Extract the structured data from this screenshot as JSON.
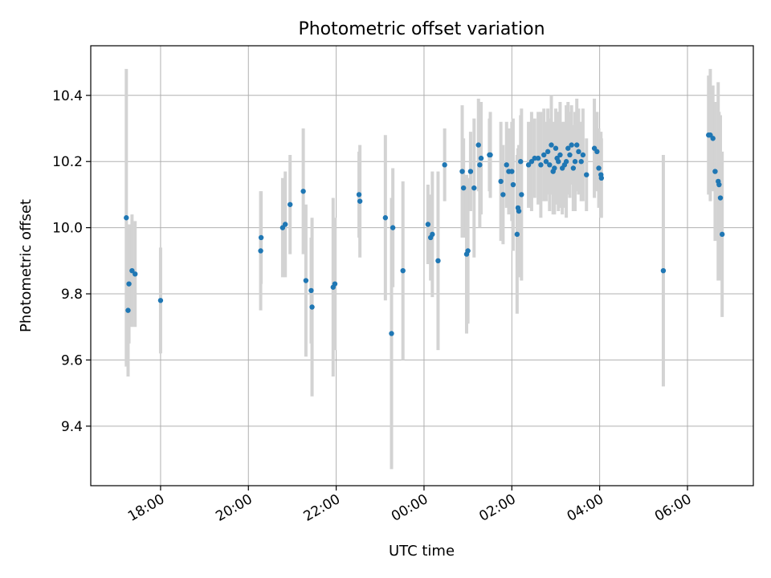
{
  "chart_data": {
    "type": "scatter",
    "title": "Photometric offset variation",
    "xlabel": "UTC time",
    "ylabel": "Photometric offset",
    "x_unit": "hours relative to 00:00 UTC",
    "xlim": [
      -7.59,
      7.5
    ],
    "ylim": [
      9.22,
      10.55
    ],
    "xticks": [
      {
        "value": -6,
        "label": "18:00"
      },
      {
        "value": -4,
        "label": "20:00"
      },
      {
        "value": -2,
        "label": "22:00"
      },
      {
        "value": 0,
        "label": "00:00"
      },
      {
        "value": 2,
        "label": "02:00"
      },
      {
        "value": 4,
        "label": "04:00"
      },
      {
        "value": 6,
        "label": "06:00"
      }
    ],
    "yticks": [
      {
        "value": 9.4,
        "label": "9.4"
      },
      {
        "value": 9.6,
        "label": "9.6"
      },
      {
        "value": 9.8,
        "label": "9.8"
      },
      {
        "value": 10.0,
        "label": "10.0"
      },
      {
        "value": 10.2,
        "label": "10.2"
      },
      {
        "value": 10.4,
        "label": "10.4"
      }
    ],
    "grid": true,
    "colors": {
      "points": "#1f77b4",
      "errorbars": "#d3d3d3",
      "grid": "#b0b0b0"
    },
    "series": [
      {
        "points": [
          [
            -6.78,
            10.03,
            0.45
          ],
          [
            -6.74,
            9.75,
            0.2
          ],
          [
            -6.72,
            9.83,
            0.18
          ],
          [
            -6.65,
            9.87,
            0.17
          ],
          [
            -6.58,
            9.86,
            0.16
          ],
          [
            -6.0,
            9.78,
            0.16
          ],
          [
            -3.71,
            9.97,
            0.14
          ],
          [
            -3.72,
            9.93,
            0.18
          ],
          [
            -3.22,
            10.0,
            0.15
          ],
          [
            -3.16,
            10.01,
            0.16
          ],
          [
            -3.05,
            10.07,
            0.15
          ],
          [
            -2.75,
            10.11,
            0.19
          ],
          [
            -2.69,
            9.84,
            0.23
          ],
          [
            -2.57,
            9.81,
            0.16
          ],
          [
            -2.55,
            9.76,
            0.27
          ],
          [
            -2.07,
            9.82,
            0.27
          ],
          [
            -2.03,
            9.83,
            0.2
          ],
          [
            -1.48,
            10.1,
            0.13
          ],
          [
            -1.46,
            10.08,
            0.17
          ],
          [
            -0.88,
            10.03,
            0.25
          ],
          [
            -0.74,
            9.68,
            0.41
          ],
          [
            -0.71,
            10.0,
            0.18
          ],
          [
            -0.48,
            9.87,
            0.27
          ],
          [
            0.09,
            10.01,
            0.12
          ],
          [
            0.15,
            9.97,
            0.13
          ],
          [
            0.19,
            9.98,
            0.19
          ],
          [
            0.32,
            9.9,
            0.27
          ],
          [
            0.47,
            10.19,
            0.11
          ],
          [
            0.87,
            10.17,
            0.2
          ],
          [
            0.9,
            10.12,
            0.15
          ],
          [
            0.97,
            9.92,
            0.24
          ],
          [
            1.0,
            9.93,
            0.22
          ],
          [
            1.06,
            10.17,
            0.12
          ],
          [
            1.14,
            10.12,
            0.21
          ],
          [
            1.24,
            10.25,
            0.14
          ],
          [
            1.27,
            10.19,
            0.19
          ],
          [
            1.3,
            10.21,
            0.17
          ],
          [
            1.49,
            10.22,
            0.11
          ],
          [
            1.51,
            10.22,
            0.13
          ],
          [
            1.75,
            10.14,
            0.18
          ],
          [
            1.8,
            10.1,
            0.15
          ],
          [
            1.88,
            10.19,
            0.13
          ],
          [
            1.93,
            10.17,
            0.13
          ],
          [
            2.0,
            10.17,
            0.15
          ],
          [
            2.03,
            10.13,
            0.2
          ],
          [
            2.12,
            9.98,
            0.24
          ],
          [
            2.14,
            10.06,
            0.18
          ],
          [
            2.16,
            10.05,
            0.2
          ],
          [
            2.2,
            10.2,
            0.14
          ],
          [
            2.22,
            10.1,
            0.26
          ],
          [
            2.38,
            10.19,
            0.13
          ],
          [
            2.45,
            10.2,
            0.15
          ],
          [
            2.52,
            10.21,
            0.12
          ],
          [
            2.6,
            10.21,
            0.14
          ],
          [
            2.66,
            10.19,
            0.16
          ],
          [
            2.73,
            10.22,
            0.14
          ],
          [
            2.78,
            10.2,
            0.12
          ],
          [
            2.82,
            10.23,
            0.13
          ],
          [
            2.86,
            10.19,
            0.14
          ],
          [
            2.9,
            10.25,
            0.15
          ],
          [
            2.94,
            10.17,
            0.13
          ],
          [
            2.97,
            10.18,
            0.14
          ],
          [
            3.0,
            10.24,
            0.12
          ],
          [
            3.03,
            10.21,
            0.14
          ],
          [
            3.06,
            10.2,
            0.15
          ],
          [
            3.1,
            10.22,
            0.16
          ],
          [
            3.15,
            10.18,
            0.14
          ],
          [
            3.2,
            10.19,
            0.13
          ],
          [
            3.24,
            10.2,
            0.17
          ],
          [
            3.28,
            10.24,
            0.14
          ],
          [
            3.32,
            10.22,
            0.13
          ],
          [
            3.36,
            10.25,
            0.12
          ],
          [
            3.4,
            10.18,
            0.13
          ],
          [
            3.44,
            10.2,
            0.15
          ],
          [
            3.48,
            10.25,
            0.14
          ],
          [
            3.52,
            10.23,
            0.13
          ],
          [
            3.58,
            10.2,
            0.12
          ],
          [
            3.62,
            10.22,
            0.14
          ],
          [
            3.7,
            10.16,
            0.11
          ],
          [
            3.88,
            10.24,
            0.15
          ],
          [
            3.94,
            10.23,
            0.12
          ],
          [
            3.98,
            10.18,
            0.12
          ],
          [
            4.03,
            10.16,
            0.13
          ],
          [
            4.04,
            10.15,
            0.12
          ],
          [
            5.45,
            9.87,
            0.35
          ],
          [
            6.48,
            10.28,
            0.18
          ],
          [
            6.52,
            10.28,
            0.2
          ],
          [
            6.58,
            10.27,
            0.16
          ],
          [
            6.63,
            10.17,
            0.21
          ],
          [
            6.7,
            10.14,
            0.3
          ],
          [
            6.72,
            10.13,
            0.22
          ],
          [
            6.75,
            10.09,
            0.25
          ],
          [
            6.79,
            9.98,
            0.25
          ]
        ]
      }
    ]
  }
}
